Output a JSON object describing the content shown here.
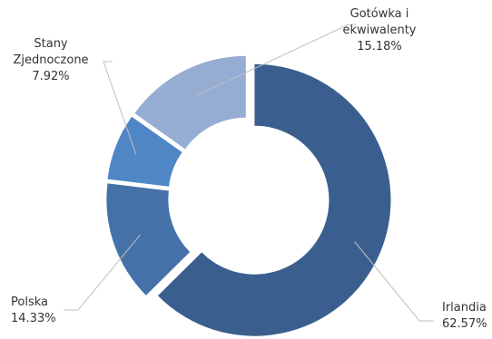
{
  "chart_data": {
    "type": "donut",
    "title": "",
    "slices": [
      {
        "name": "Irlandia",
        "value": 62.57,
        "value_label": "62.57%",
        "color": "#3a5f8f"
      },
      {
        "name": "Polska",
        "value": 14.33,
        "value_label": "14.33%",
        "color": "#4472a8"
      },
      {
        "name": "Stany Zjednoczone",
        "value": 7.92,
        "value_label": "7.92%",
        "color": "#4f86c6"
      },
      {
        "name": "Gotówka i ekwiwalenty",
        "value": 15.18,
        "value_label": "15.18%",
        "color": "#95acd3"
      }
    ],
    "labels": [
      {
        "lines": [
          "Irlandia",
          "62.57%"
        ]
      },
      {
        "lines": [
          "Polska",
          "14.33%"
        ]
      },
      {
        "lines": [
          "Stany",
          "Zjednoczone",
          "7.92%"
        ]
      },
      {
        "lines": [
          "Gotówka i",
          "ekwiwalenty",
          "15.18%"
        ]
      }
    ],
    "legend": "none",
    "exploded": true
  }
}
